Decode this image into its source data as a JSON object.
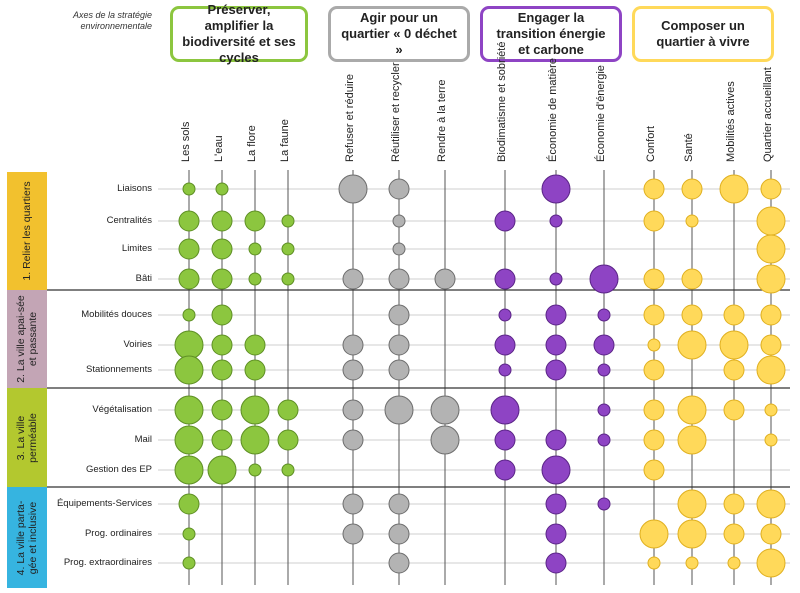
{
  "axes_label": "Axes de la stratégie environnementale",
  "colors": {
    "green": "#8cc63f",
    "green_stroke": "#5e8f24",
    "gray": "#b3b3b3",
    "gray_stroke": "#6d6d6d",
    "purple": "#8e44c4",
    "purple_stroke": "#5a2486",
    "yellow": "#ffd95a",
    "yellow_stroke": "#e0b020",
    "group1": "#f2c12e",
    "group2": "#c3a5b5",
    "group3": "#b3c82f",
    "group4": "#36b4e0",
    "box_green": "#8cc63f",
    "box_gray": "#aaaaaa",
    "box_purple": "#8e44c4",
    "box_yellow": "#ffd95a"
  },
  "axes": [
    {
      "title": "Préserver, amplifier la biodiversité et ses cycles",
      "color": "green",
      "columns": [
        "Les sols",
        "L'eau",
        "La flore",
        "La faune"
      ]
    },
    {
      "title": "Agir pour un quartier « 0 déchet »",
      "color": "gray",
      "columns": [
        "Refuser et réduire",
        "Réutiliser et recycler",
        "Rendre à la terre"
      ]
    },
    {
      "title": "Engager la transition énergie et carbone",
      "color": "purple",
      "columns": [
        "Biodimatisme et sobriété",
        "Économie de matière",
        "Économie d'énergie"
      ]
    },
    {
      "title": "Composer un quartier à vivre",
      "color": "yellow",
      "columns": [
        "Confort",
        "Santé",
        "Mobilités actives",
        "Quartier accueillant"
      ]
    }
  ],
  "groups": [
    {
      "label": "1. Relier les quartiers",
      "color": "group1",
      "rows": [
        "Liaisons",
        "Centralités",
        "Limites",
        "Bâti"
      ]
    },
    {
      "label": "2. La ville apai-sée et passante",
      "color": "group2",
      "rows": [
        "Mobilités douces",
        "Voiries",
        "Stationnements"
      ]
    },
    {
      "label": "3. La ville perméable",
      "color": "group3",
      "rows": [
        "Végétalisation",
        "Mail",
        "Gestion des EP"
      ]
    },
    {
      "label": "4. La ville parta-gée et inclusive",
      "color": "group4",
      "rows": [
        "Équipements-Services",
        "Prog. ordinaires",
        "Prog. extraordinaires"
      ]
    }
  ],
  "matrix": [
    [
      1,
      1,
      0,
      0,
      3,
      2,
      0,
      0,
      3,
      0,
      2,
      2,
      3,
      2
    ],
    [
      2,
      2,
      2,
      1,
      0,
      1,
      0,
      2,
      1,
      0,
      2,
      1,
      0,
      3
    ],
    [
      2,
      2,
      1,
      1,
      0,
      1,
      0,
      0,
      0,
      0,
      0,
      0,
      0,
      3
    ],
    [
      2,
      2,
      1,
      1,
      2,
      2,
      2,
      2,
      1,
      3,
      2,
      2,
      0,
      3
    ],
    [
      1,
      2,
      0,
      0,
      0,
      2,
      0,
      1,
      2,
      1,
      2,
      2,
      2,
      2
    ],
    [
      3,
      2,
      2,
      0,
      2,
      2,
      0,
      2,
      2,
      2,
      1,
      3,
      3,
      2
    ],
    [
      3,
      2,
      2,
      0,
      2,
      2,
      0,
      1,
      2,
      1,
      2,
      0,
      2,
      3
    ],
    [
      3,
      2,
      3,
      2,
      2,
      3,
      3,
      3,
      0,
      1,
      2,
      3,
      2,
      1
    ],
    [
      3,
      2,
      3,
      2,
      2,
      0,
      3,
      2,
      2,
      1,
      2,
      3,
      0,
      1
    ],
    [
      3,
      3,
      1,
      1,
      0,
      0,
      0,
      2,
      3,
      0,
      2,
      0,
      0,
      0
    ],
    [
      2,
      0,
      0,
      0,
      2,
      2,
      0,
      0,
      2,
      1,
      0,
      3,
      2,
      3
    ],
    [
      1,
      0,
      0,
      0,
      2,
      2,
      0,
      0,
      2,
      0,
      3,
      3,
      2,
      2
    ],
    [
      1,
      0,
      0,
      0,
      0,
      2,
      0,
      0,
      2,
      0,
      1,
      1,
      1,
      3
    ]
  ]
}
